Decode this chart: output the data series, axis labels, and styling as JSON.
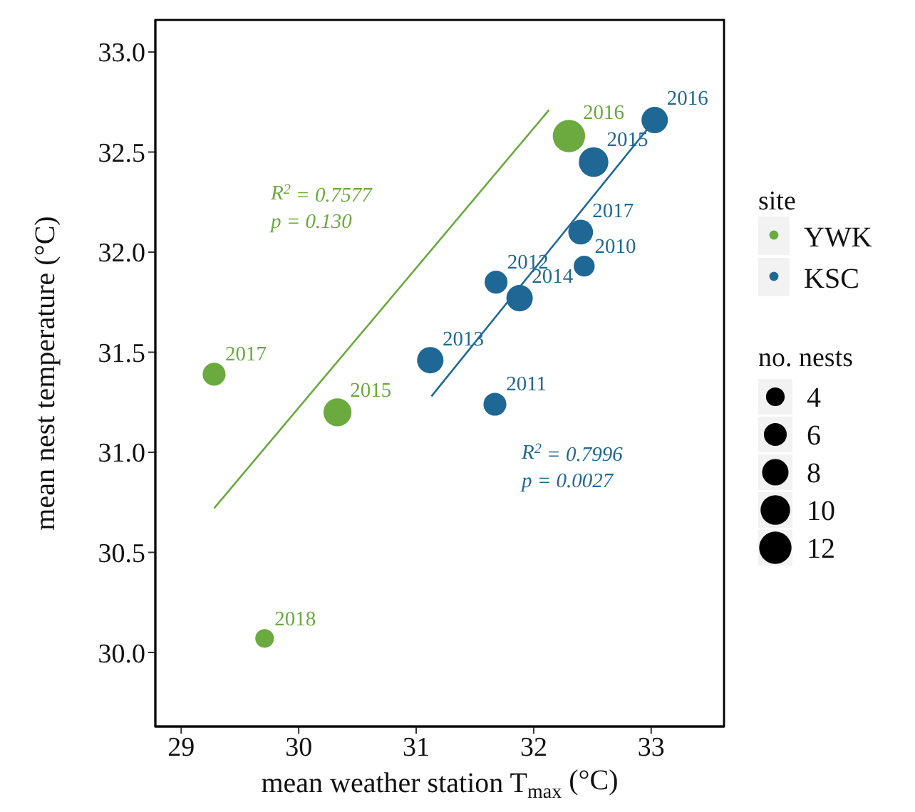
{
  "chart_data": {
    "type": "scatter",
    "xlabel": "mean weather station T$_{max}$ (°C)",
    "ylabel": "mean nest temperature (°C)",
    "legend_title": "site",
    "xlim": [
      28.78,
      33.62
    ],
    "ylim": [
      29.63,
      33.16
    ],
    "xticks": [
      29,
      30,
      31,
      32,
      33
    ],
    "yticks": [
      {
        "value": 30,
        "label": "30.0"
      },
      {
        "value": 30.5,
        "label": "30.5"
      },
      {
        "value": 31,
        "label": "31.0"
      },
      {
        "value": 31.5,
        "label": "31.5"
      },
      {
        "value": 32,
        "label": "32.0"
      },
      {
        "value": 32.5,
        "label": "32.5"
      },
      {
        "value": 33,
        "label": "33.0"
      }
    ],
    "legend": "right",
    "marker": "circle",
    "size_legend": [
      4,
      6,
      8,
      10,
      12
    ],
    "series": [
      {
        "name": "YWK",
        "color": "#6aaa3e",
        "x": [
          29.28,
          30.33,
          29.71,
          32.3
        ],
        "values": [
          31.39,
          31.2,
          30.07,
          32.58
        ],
        "sizes": [
          6,
          9,
          4,
          12
        ]
      },
      {
        "name": "KSC",
        "color": "#1f6896",
        "x": [
          33.03,
          32.51,
          32.4,
          32.43,
          31.68,
          31.88,
          31.12,
          31.67
        ],
        "values": [
          32.66,
          32.45,
          32.1,
          31.93,
          31.85,
          31.77,
          31.46,
          31.24
        ],
        "sizes": [
          8,
          10,
          7,
          5,
          6,
          8,
          8,
          6
        ]
      },
      {
        "type": "line",
        "marker": "none",
        "color": "#6aaa3e",
        "x": [
          29.28,
          32.13
        ],
        "values": [
          30.72,
          32.71
        ]
      },
      {
        "type": "line",
        "marker": "none",
        "color": "#1f6896",
        "x": [
          31.13,
          33.03
        ],
        "values": [
          31.28,
          32.66
        ]
      }
    ],
    "annotations": [
      "R$^{2}$ = 0.7577",
      "p = 0.130",
      "R$^{2}$ = 0.7996",
      "p = 0.0027",
      "no. nests",
      {
        "text": "2017",
        "x": 29.28,
        "y": 31.39
      },
      {
        "text": "2015",
        "x": 30.33,
        "y": 31.2
      },
      {
        "text": "2018",
        "x": 29.71,
        "y": 30.07
      },
      {
        "text": "2016",
        "x": 32.3,
        "y": 32.58
      },
      {
        "text": "2016",
        "x": 33.03,
        "y": 32.66
      },
      {
        "text": "2015",
        "x": 32.51,
        "y": 32.45
      },
      {
        "text": "2017",
        "x": 32.4,
        "y": 32.1
      },
      {
        "text": "2010",
        "x": 32.43,
        "y": 31.93
      },
      {
        "text": "2012",
        "x": 31.68,
        "y": 31.85
      },
      {
        "text": "2014",
        "x": 31.88,
        "y": 31.77
      },
      {
        "text": "2013",
        "x": 31.12,
        "y": 31.46
      },
      {
        "text": "2011",
        "x": 31.67,
        "y": 31.24
      }
    ]
  }
}
